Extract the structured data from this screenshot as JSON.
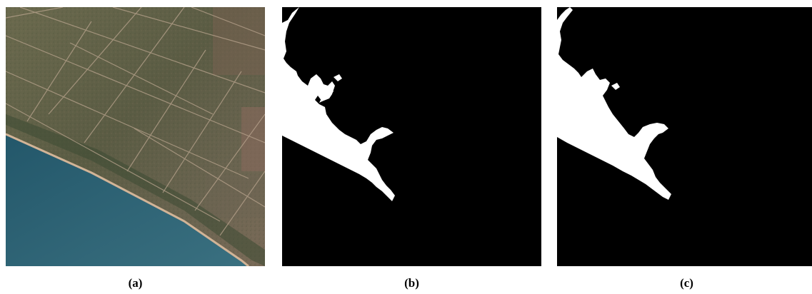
{
  "figure": {
    "panels": [
      {
        "id": "a",
        "caption": "(a)",
        "kind": "satellite-rgb-image"
      },
      {
        "id": "b",
        "caption": "(b)",
        "kind": "binary-mask"
      },
      {
        "id": "c",
        "caption": "(c)",
        "kind": "binary-mask"
      }
    ],
    "colors": {
      "mask_foreground": "#ffffff",
      "mask_background": "#000000",
      "land": "#5f5e45",
      "sea": "#2a5a6a",
      "beach": "#c9a98a",
      "tracks": "#b8a08a"
    }
  }
}
